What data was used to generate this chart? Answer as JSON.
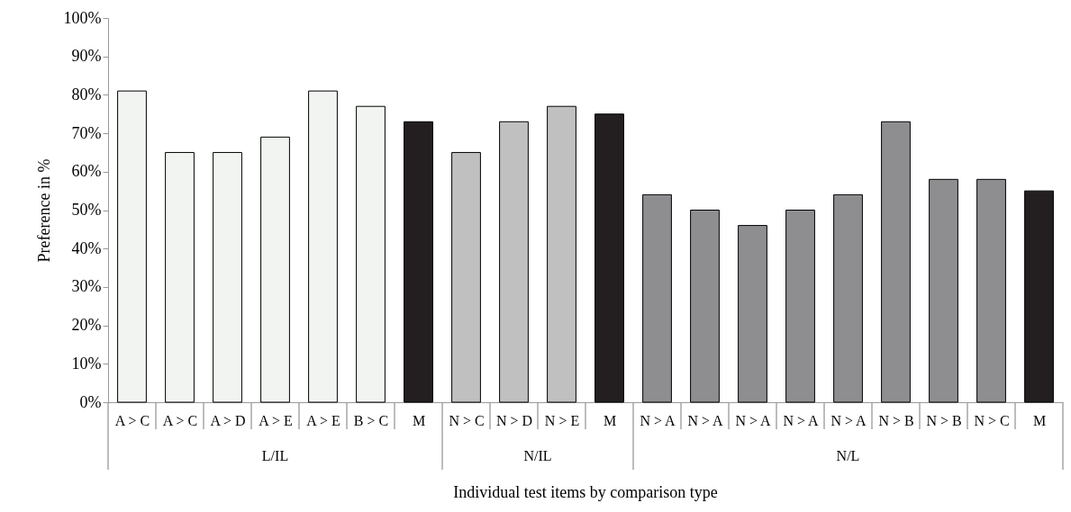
{
  "chart_data": {
    "type": "bar",
    "xlabel": "Individual test items by comparison type",
    "ylabel": "Preference in %",
    "categories": [
      "A > C",
      "A > C",
      "A > D",
      "A > E",
      "A > E",
      "B > C",
      "M",
      "N > C",
      "N > D",
      "N > E",
      "M",
      "N > A",
      "N > A",
      "N > A",
      "N > A",
      "N > A",
      "N > B",
      "N > B",
      "N > C",
      "M"
    ],
    "series": [
      {
        "values": [
          81,
          65,
          65,
          69,
          81,
          77,
          73,
          null,
          null,
          null,
          null,
          null,
          null,
          null,
          null,
          null,
          null,
          null,
          null,
          null
        ],
        "colors": [
          "#f2f4f2",
          "#f2f4f2",
          "#f2f4f2",
          "#f2f4f2",
          "#f2f4f2",
          "#f2f4f2",
          "#231f20",
          null,
          null,
          null,
          null,
          null,
          null,
          null,
          null,
          null,
          null,
          null,
          null,
          null
        ]
      },
      {
        "values": [
          null,
          null,
          null,
          null,
          null,
          null,
          null,
          65,
          73,
          77,
          75,
          null,
          null,
          null,
          null,
          null,
          null,
          null,
          null,
          null
        ],
        "colors": [
          null,
          null,
          null,
          null,
          null,
          null,
          null,
          "#c0c0c0",
          "#c0c0c0",
          "#c0c0c0",
          "#231f20",
          null,
          null,
          null,
          null,
          null,
          null,
          null,
          null,
          null
        ]
      },
      {
        "values": [
          null,
          null,
          null,
          null,
          null,
          null,
          null,
          null,
          null,
          null,
          null,
          54,
          50,
          46,
          50,
          54,
          73,
          58,
          58,
          55
        ],
        "colors": [
          null,
          null,
          null,
          null,
          null,
          null,
          null,
          null,
          null,
          null,
          null,
          "#8e8e91",
          "#8e8e91",
          "#8e8e91",
          "#8e8e91",
          "#8e8e91",
          "#8e8e91",
          "#8e8e91",
          "#8e8e91",
          "#231f20"
        ]
      }
    ],
    "ylim": [
      0,
      100
    ],
    "yticks": [
      {
        "value": 0,
        "label": "0%"
      },
      {
        "value": 10,
        "label": "10%"
      },
      {
        "value": 20,
        "label": "20%"
      },
      {
        "value": 30,
        "label": "30%"
      },
      {
        "value": 40,
        "label": "40%"
      },
      {
        "value": 50,
        "label": "50%"
      },
      {
        "value": 60,
        "label": "60%"
      },
      {
        "value": 70,
        "label": "70%"
      },
      {
        "value": 80,
        "label": "80%"
      },
      {
        "value": 90,
        "label": "90%"
      },
      {
        "value": 100,
        "label": "100%"
      }
    ],
    "annotations": [
      "L/IL",
      "N/IL",
      "N/L"
    ],
    "grid": false
  }
}
